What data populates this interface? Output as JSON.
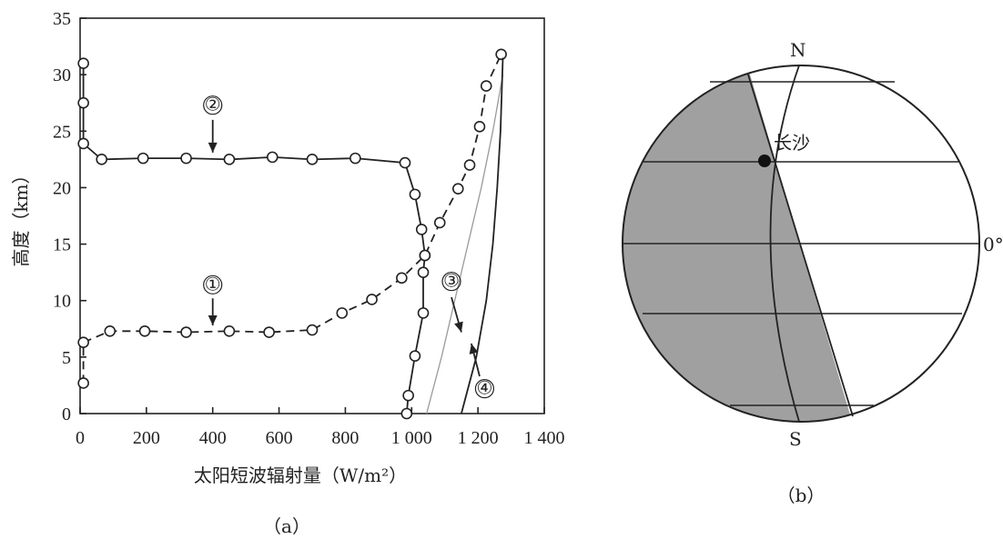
{
  "chart_data": {
    "type": "line",
    "title": "",
    "xlabel": "太阳短波辐射量（W/m²）",
    "ylabel": "高度（km）",
    "xlim": [
      0,
      1400
    ],
    "ylim": [
      0,
      35
    ],
    "x_ticks": [
      0,
      200,
      400,
      600,
      800,
      1000,
      1200,
      1400
    ],
    "x_tick_labels": [
      "0",
      "200",
      "400",
      "600",
      "800",
      "1 000",
      "1 200",
      "1 400"
    ],
    "y_ticks": [
      0,
      5,
      10,
      15,
      20,
      25,
      30,
      35
    ],
    "y_tick_labels": [
      "0",
      "5",
      "10",
      "15",
      "20",
      "25",
      "30",
      "35"
    ],
    "grid": false,
    "series": [
      {
        "name": "①",
        "style": "dashed",
        "color": "#222222",
        "points": [
          [
            10,
            2.7
          ],
          [
            10,
            6.3
          ],
          [
            90,
            7.3
          ],
          [
            195,
            7.3
          ],
          [
            320,
            7.2
          ],
          [
            450,
            7.3
          ],
          [
            570,
            7.2
          ],
          [
            700,
            7.4
          ],
          [
            790,
            8.9
          ],
          [
            880,
            10.1
          ],
          [
            970,
            12.0
          ],
          [
            1040,
            14.0
          ],
          [
            1085,
            16.9
          ],
          [
            1140,
            19.9
          ],
          [
            1175,
            22.0
          ],
          [
            1205,
            25.4
          ],
          [
            1225,
            29.0
          ],
          [
            1270,
            31.8
          ]
        ],
        "label_text": "①",
        "label_x": 400,
        "label_y": 11.4
      },
      {
        "name": "②",
        "style": "solid",
        "color": "#222222",
        "points": [
          [
            10,
            31.0
          ],
          [
            10,
            27.5
          ],
          [
            10,
            23.9
          ],
          [
            65,
            22.5
          ],
          [
            190,
            22.6
          ],
          [
            320,
            22.6
          ],
          [
            450,
            22.5
          ],
          [
            580,
            22.7
          ],
          [
            700,
            22.5
          ],
          [
            830,
            22.6
          ],
          [
            980,
            22.2
          ],
          [
            1010,
            19.4
          ],
          [
            1030,
            16.3
          ],
          [
            1040,
            14.0
          ],
          [
            1035,
            12.5
          ],
          [
            1035,
            8.9
          ],
          [
            1010,
            5.1
          ],
          [
            990,
            1.6
          ],
          [
            985,
            0
          ]
        ],
        "label_text": "②",
        "label_x": 400,
        "label_y": 27.3
      },
      {
        "name": "③",
        "style": "solid",
        "color": "#9a9a9a",
        "points": [
          [
            1045,
            0
          ],
          [
            1090,
            5
          ],
          [
            1130,
            10
          ],
          [
            1170,
            15
          ],
          [
            1210,
            20
          ],
          [
            1245,
            25
          ],
          [
            1275,
            30
          ]
        ],
        "label_text": "③",
        "label_x": 1120,
        "label_y": 11.7
      },
      {
        "name": "④",
        "style": "solid",
        "color": "#222222",
        "points": [
          [
            1150,
            0
          ],
          [
            1195,
            5
          ],
          [
            1225,
            10
          ],
          [
            1245,
            15
          ],
          [
            1258,
            20
          ],
          [
            1268,
            25
          ],
          [
            1275,
            31.5
          ]
        ],
        "label_text": "④",
        "label_x": 1220,
        "label_y": 2.2
      }
    ],
    "annotations": [
      "①",
      "②",
      "③",
      "④"
    ],
    "panel_label": "（a）"
  },
  "globe": {
    "north_label": "N",
    "south_label": "S",
    "equator_label": "0°",
    "city_label": "长沙",
    "panel_label": "（b）",
    "night_color": "#a0a0a0"
  }
}
